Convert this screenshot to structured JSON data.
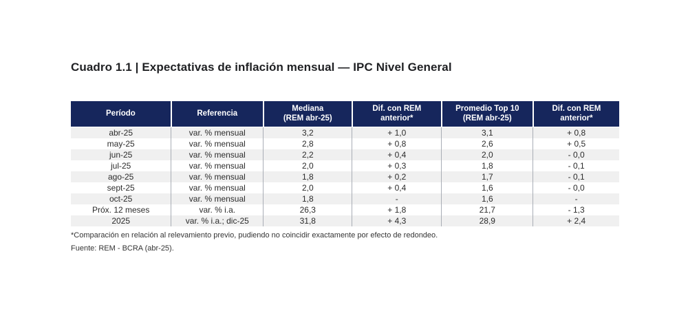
{
  "title": "Cuadro 1.1 | Expectativas de inflación mensual — IPC Nivel General",
  "colors": {
    "header_bg": "#16265c",
    "header_text": "#ffffff",
    "row_alt_bg": "#f0f0f0",
    "divider": "#a8adb5",
    "body_text": "#2b2b2b"
  },
  "table": {
    "headers": [
      {
        "line1": "Período",
        "line2": ""
      },
      {
        "line1": "Referencia",
        "line2": ""
      },
      {
        "line1": "Mediana",
        "line2": "(REM abr-25)"
      },
      {
        "line1": "Dif. con REM",
        "line2": "anterior*"
      },
      {
        "line1": "Promedio Top 10",
        "line2": "(REM abr-25)"
      },
      {
        "line1": "Dif. con REM",
        "line2": "anterior*"
      }
    ],
    "col_widths_pct": [
      18.3,
      16.8,
      16.2,
      16.3,
      16.7,
      15.7
    ],
    "rows": [
      [
        "abr-25",
        "var. % mensual",
        "3,2",
        "+ 1,0",
        "3,1",
        "+ 0,8"
      ],
      [
        "may-25",
        "var. % mensual",
        "2,8",
        "+ 0,8",
        "2,6",
        "+ 0,5"
      ],
      [
        "jun-25",
        "var. % mensual",
        "2,2",
        "+ 0,4",
        "2,0",
        "- 0,0"
      ],
      [
        "jul-25",
        "var. % mensual",
        "2,0",
        "+ 0,3",
        "1,8",
        "- 0,1"
      ],
      [
        "ago-25",
        "var. % mensual",
        "1,8",
        "+ 0,2",
        "1,7",
        "- 0,1"
      ],
      [
        "sept-25",
        "var. % mensual",
        "2,0",
        "+ 0,4",
        "1,6",
        "- 0,0"
      ],
      [
        "oct-25",
        "var. % mensual",
        "1,8",
        "-",
        "1,6",
        "-"
      ],
      [
        "Próx. 12 meses",
        "var. % i.a.",
        "26,3",
        "+ 1,8",
        "21,7",
        "- 1,3"
      ],
      [
        "2025",
        "var. % i.a.; dic-25",
        "31,8",
        "+ 4,3",
        "28,9",
        "+ 2,4"
      ]
    ]
  },
  "footnotes": {
    "note": "*Comparación en relación al relevamiento previo, pudiendo no coincidir exactamente por efecto de redondeo.",
    "source": "Fuente: REM - BCRA (abr-25)."
  }
}
